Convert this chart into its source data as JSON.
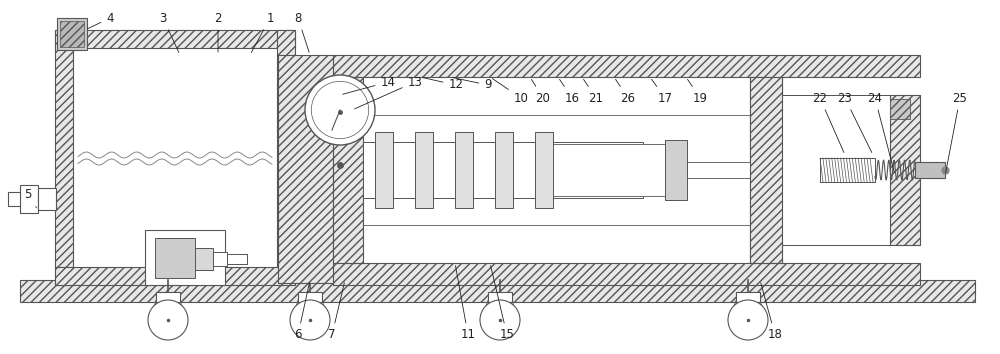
{
  "bg_color": "#ffffff",
  "lc": "#555555",
  "fig_width": 10.0,
  "fig_height": 3.54,
  "dpi": 100,
  "xlim": [
    0,
    1000
  ],
  "ylim": [
    0,
    354
  ],
  "hatch_fc": "#e8e8e8",
  "white": "#ffffff",
  "gray": "#d0d0d0",
  "darkgray": "#aaaaaa"
}
